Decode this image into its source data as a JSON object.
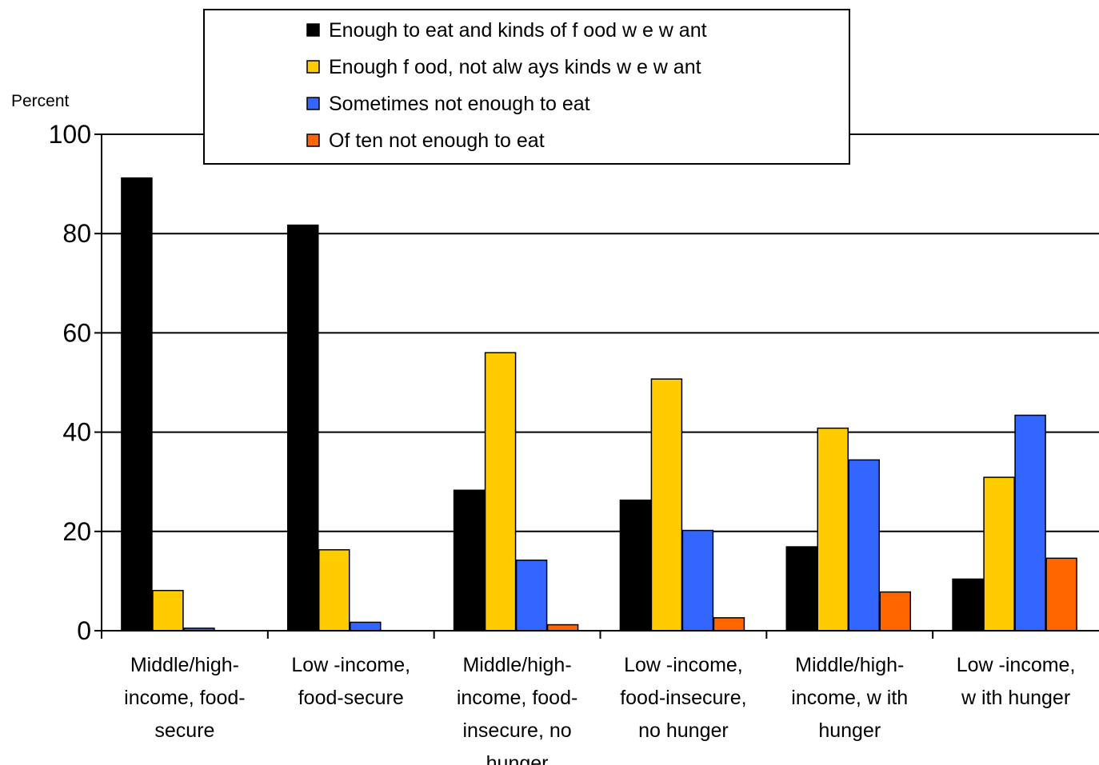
{
  "chart_data": {
    "type": "bar",
    "ylabel": "Percent",
    "ylim": [
      0,
      100
    ],
    "yticks": [
      0,
      20,
      40,
      60,
      80,
      100
    ],
    "grid": true,
    "legend_position": "top-center",
    "categories": [
      [
        "Middle/high-",
        "income, food-",
        "secure"
      ],
      [
        "Low -income,",
        "food-secure"
      ],
      [
        "Middle/high-",
        "income, food-",
        "insecure, no",
        "hunger"
      ],
      [
        "Low -income,",
        "food-insecure,",
        "no hunger"
      ],
      [
        "Middle/high-",
        "income, w ith",
        "hunger"
      ],
      [
        "Low -income,",
        "w ith hunger"
      ]
    ],
    "series": [
      {
        "name": "Enough to eat and kinds of f ood w e w ant",
        "color": "#000000",
        "values": [
          91.2,
          81.7,
          28.3,
          26.3,
          16.9,
          10.4
        ]
      },
      {
        "name": "Enough f ood, not alw ays kinds w e w ant",
        "color": "#ffcc00",
        "values": [
          8.1,
          16.3,
          56.0,
          50.7,
          40.8,
          30.9
        ]
      },
      {
        "name": "Sometimes not enough to eat",
        "color": "#3366ff",
        "values": [
          0.5,
          1.7,
          14.2,
          20.2,
          34.4,
          43.4
        ]
      },
      {
        "name": "Of ten not enough to eat",
        "color": "#ff6600",
        "values": [
          0.0,
          0.0,
          1.2,
          2.6,
          7.8,
          14.6
        ]
      }
    ]
  }
}
